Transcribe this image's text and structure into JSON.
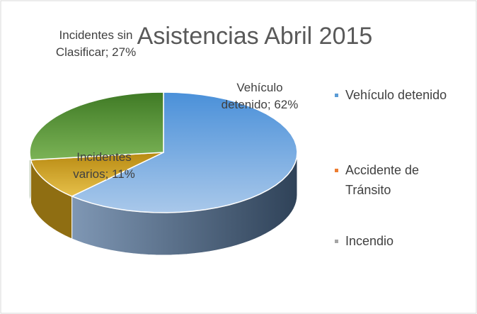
{
  "chart_data": {
    "type": "pie3d",
    "title": "Asistencias Abril 2015",
    "categories": [
      "Vehículo detenido",
      "Incidentes varios",
      "Incidentes sin Clasificar"
    ],
    "values": [
      62,
      11,
      27
    ],
    "value_labels": [
      "Vehículo detenido; 62%",
      "Incidentes varios; 11%",
      "Incidentes sin Clasificar; 27%"
    ],
    "colors": [
      "#5b9bd5",
      "#d4a21c",
      "#5e9a3a"
    ],
    "legend": [
      {
        "name": "Vehículo detenido",
        "color": "#5b9bd5"
      },
      {
        "name": "Accidente de Tránsito",
        "color": "#ed7d31"
      },
      {
        "name": "Incendio",
        "color": "#a5a5a5"
      }
    ]
  }
}
